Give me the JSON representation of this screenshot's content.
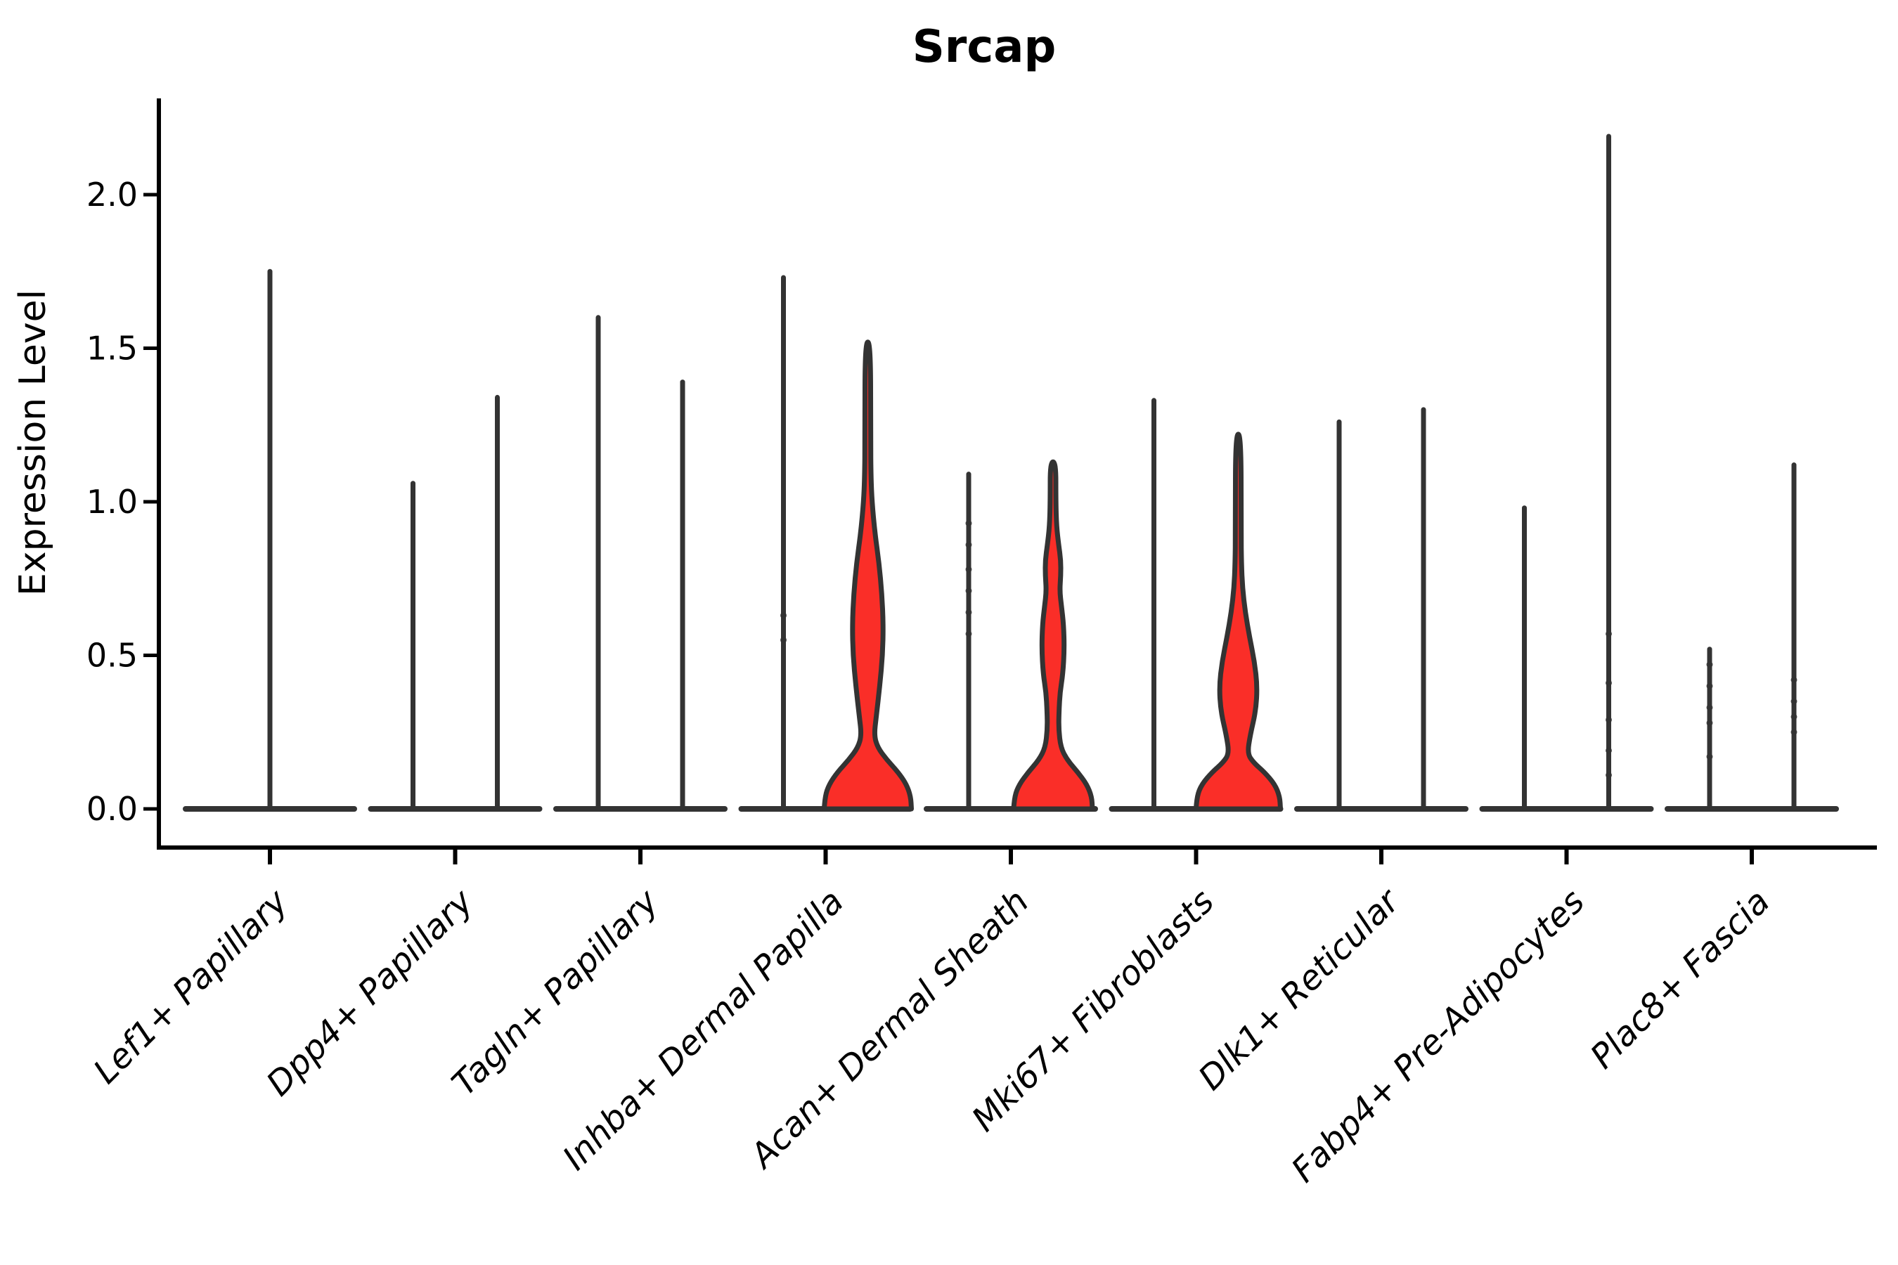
{
  "page": {
    "background_color": "#ffffff"
  },
  "chart_data": {
    "type": "violin",
    "title": "Srcap",
    "ylabel": "Expression Level",
    "xlabel": "",
    "grid": false,
    "legend": null,
    "ylim": [
      -0.13,
      2.31
    ],
    "x_tick_rotation_deg": 45,
    "axis_color": "#000000",
    "violin_outline_color": "#333333",
    "violin_fill_color": "#FA2E28",
    "yticks": [
      {
        "label": "0.0",
        "value": 0.0
      },
      {
        "label": "0.5",
        "value": 0.5
      },
      {
        "label": "1.0",
        "value": 1.0
      },
      {
        "label": "1.5",
        "value": 1.5
      },
      {
        "label": "2.0",
        "value": 2.0
      }
    ],
    "categories": [
      "Lef1+ Papillary",
      "Dpp4+ Papillary",
      "Tagln+ Papillary",
      "Inhba+ Dermal Papilla",
      "Acan+ Dermal Sheath",
      "Mki67+ Fibroblasts",
      "Dlk1+ Reticular",
      "Fabp4+ Pre-Adipocytes",
      "Plac8+ Fascia"
    ],
    "violins": [
      {
        "category": "Lef1+ Papillary",
        "category_index": 0,
        "slot": "center",
        "max_expression": 1.75,
        "filled": false
      },
      {
        "category": "Dpp4+ Papillary",
        "category_index": 1,
        "slot": "left",
        "max_expression": 1.06,
        "filled": false
      },
      {
        "category": "Dpp4+ Papillary",
        "category_index": 1,
        "slot": "right",
        "max_expression": 1.34,
        "filled": false
      },
      {
        "category": "Tagln+ Papillary",
        "category_index": 2,
        "slot": "left",
        "max_expression": 1.6,
        "filled": false
      },
      {
        "category": "Tagln+ Papillary",
        "category_index": 2,
        "slot": "right",
        "max_expression": 1.39,
        "filled": false
      },
      {
        "category": "Inhba+ Dermal Papilla",
        "category_index": 3,
        "slot": "left",
        "max_expression": 1.73,
        "filled": false,
        "dots": [
          0.55,
          0.63
        ]
      },
      {
        "category": "Inhba+ Dermal Papilla",
        "category_index": 3,
        "slot": "right",
        "max_expression": 1.52,
        "filled": true,
        "profile": [
          [
            0,
            62
          ],
          [
            0.04,
            61
          ],
          [
            0.08,
            55
          ],
          [
            0.12,
            43
          ],
          [
            0.16,
            27
          ],
          [
            0.2,
            14
          ],
          [
            0.24,
            9
          ],
          [
            0.3,
            12
          ],
          [
            0.4,
            17
          ],
          [
            0.5,
            21
          ],
          [
            0.6,
            22
          ],
          [
            0.7,
            20
          ],
          [
            0.8,
            16
          ],
          [
            0.9,
            10
          ],
          [
            1.0,
            6
          ],
          [
            1.08,
            4.5
          ],
          [
            1.2,
            4
          ],
          [
            1.52,
            4
          ]
        ]
      },
      {
        "category": "Acan+ Dermal Sheath",
        "category_index": 4,
        "slot": "left",
        "max_expression": 1.09,
        "filled": false,
        "dots": [
          0.57,
          0.64,
          0.71,
          0.78,
          0.86,
          0.93
        ]
      },
      {
        "category": "Acan+ Dermal Sheath",
        "category_index": 4,
        "slot": "right",
        "max_expression": 1.13,
        "filled": true,
        "profile": [
          [
            0,
            56
          ],
          [
            0.04,
            55
          ],
          [
            0.08,
            48
          ],
          [
            0.12,
            35
          ],
          [
            0.16,
            20
          ],
          [
            0.2,
            11
          ],
          [
            0.26,
            8
          ],
          [
            0.32,
            8.5
          ],
          [
            0.38,
            10
          ],
          [
            0.44,
            14
          ],
          [
            0.52,
            16
          ],
          [
            0.6,
            15
          ],
          [
            0.66,
            12
          ],
          [
            0.71,
            9.5
          ],
          [
            0.76,
            11
          ],
          [
            0.81,
            11
          ],
          [
            0.86,
            8
          ],
          [
            0.92,
            5
          ],
          [
            1.0,
            4
          ],
          [
            1.13,
            4
          ]
        ]
      },
      {
        "category": "Mki67+ Fibroblasts",
        "category_index": 5,
        "slot": "left",
        "max_expression": 1.33,
        "filled": false
      },
      {
        "category": "Mki67+ Fibroblasts",
        "category_index": 5,
        "slot": "right",
        "max_expression": 1.22,
        "filled": true,
        "profile": [
          [
            0,
            60
          ],
          [
            0.04,
            59
          ],
          [
            0.08,
            52
          ],
          [
            0.12,
            37
          ],
          [
            0.15,
            22
          ],
          [
            0.18,
            13
          ],
          [
            0.24,
            17
          ],
          [
            0.32,
            25
          ],
          [
            0.4,
            27
          ],
          [
            0.48,
            23
          ],
          [
            0.56,
            16
          ],
          [
            0.64,
            10
          ],
          [
            0.72,
            6
          ],
          [
            0.8,
            4.5
          ],
          [
            0.9,
            4
          ],
          [
            1.22,
            4
          ]
        ]
      },
      {
        "category": "Dlk1+ Reticular",
        "category_index": 6,
        "slot": "left",
        "max_expression": 1.26,
        "filled": false
      },
      {
        "category": "Dlk1+ Reticular",
        "category_index": 6,
        "slot": "right",
        "max_expression": 1.3,
        "filled": false
      },
      {
        "category": "Fabp4+ Pre-Adipocytes",
        "category_index": 7,
        "slot": "left",
        "max_expression": 0.98,
        "filled": false
      },
      {
        "category": "Fabp4+ Pre-Adipocytes",
        "category_index": 7,
        "slot": "right",
        "max_expression": 2.19,
        "filled": false,
        "dots": [
          0.11,
          0.19,
          0.29,
          0.41,
          0.57
        ]
      },
      {
        "category": "Plac8+ Fascia",
        "category_index": 8,
        "slot": "left",
        "max_expression": 0.52,
        "filled": false,
        "dots": [
          0.17,
          0.28,
          0.33,
          0.4,
          0.47
        ]
      },
      {
        "category": "Plac8+ Fascia",
        "category_index": 8,
        "slot": "right",
        "max_expression": 1.12,
        "filled": false,
        "dots": [
          0.25,
          0.3,
          0.35,
          0.42
        ]
      }
    ]
  }
}
